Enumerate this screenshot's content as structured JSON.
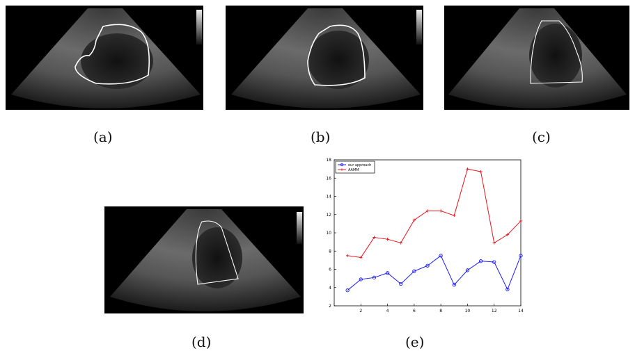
{
  "captions": {
    "a": "(a)",
    "b": "(b)",
    "c": "(c)",
    "d": "(d)",
    "e": "(e)"
  },
  "colors": {
    "background": "#000000",
    "contour": "#ffffff",
    "series_ours": "#1a1aff",
    "series_aamm": "#e8141a"
  },
  "chart_data": {
    "type": "line",
    "title": "",
    "xlabel": "",
    "ylabel": "",
    "xlim": [
      0,
      14
    ],
    "ylim": [
      2,
      18
    ],
    "xticks": [
      2,
      4,
      6,
      8,
      10,
      12,
      14
    ],
    "yticks": [
      2,
      4,
      6,
      8,
      10,
      12,
      14,
      16,
      18
    ],
    "grid": false,
    "legend_position": "top-left",
    "x": [
      1,
      2,
      3,
      4,
      5,
      6,
      7,
      8,
      9,
      10,
      11,
      12,
      13,
      14
    ],
    "series": [
      {
        "name": "our approach",
        "color": "#1a1aff",
        "marker": "circle",
        "values": [
          3.7,
          4.9,
          5.1,
          5.6,
          4.4,
          5.8,
          6.4,
          7.5,
          4.3,
          5.9,
          6.9,
          6.8,
          3.8,
          7.5
        ]
      },
      {
        "name": "AAMM",
        "color": "#e8141a",
        "marker": "plus",
        "values": [
          7.5,
          7.3,
          9.5,
          9.3,
          8.9,
          11.4,
          12.4,
          12.4,
          11.9,
          17.0,
          16.7,
          8.9,
          9.8,
          11.3
        ]
      }
    ]
  }
}
